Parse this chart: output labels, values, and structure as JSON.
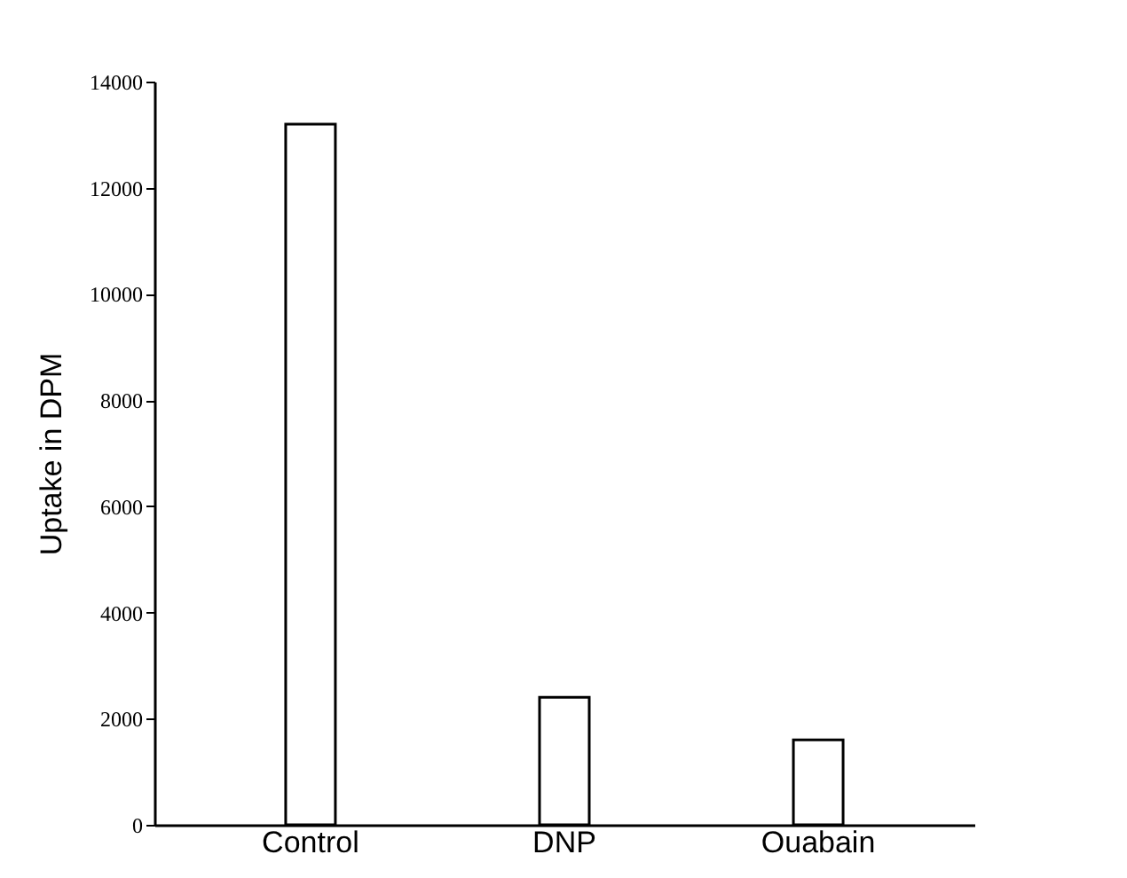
{
  "chart_data": {
    "type": "bar",
    "ylabel": "Uptake in DPM",
    "categories": [
      "Control",
      "DNP",
      "Ouabain"
    ],
    "series": [
      {
        "color": "#ffffff",
        "values": [
          13200,
          2400,
          1600
        ]
      }
    ],
    "ylim": [
      0,
      14000
    ],
    "yticks": [
      0,
      2000,
      4000,
      6000,
      8000,
      10000,
      12000,
      14000
    ],
    "grid": false
  }
}
